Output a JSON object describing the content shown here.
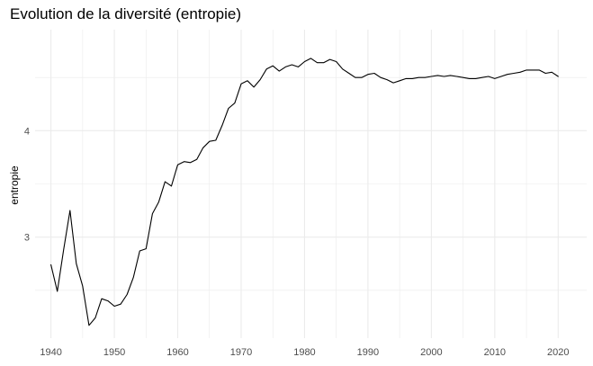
{
  "chart_data": {
    "type": "line",
    "title": "Evolution de la diversité (entropie)",
    "xlabel": "",
    "ylabel": "entropie",
    "xlim": [
      1937.5,
      2024.5
    ],
    "ylim": [
      2.05,
      4.95
    ],
    "x_ticks": [
      1940,
      1950,
      1960,
      1970,
      1980,
      1990,
      2000,
      2010,
      2020
    ],
    "x_minor_ticks": [
      1945,
      1955,
      1965,
      1975,
      1985,
      1995,
      2005,
      2015
    ],
    "y_ticks": [
      3,
      4
    ],
    "y_minor_ticks": [
      2.5,
      3.5,
      4.5
    ],
    "grid": true,
    "legend": "none",
    "colors": {
      "line": "#000000",
      "grid": "#ebebeb",
      "tick_label": "#4d4d4d",
      "background": "#ffffff"
    },
    "series": [
      {
        "x": [
          1940,
          1941,
          1942,
          1943,
          1944,
          1945,
          1946,
          1947,
          1948,
          1949,
          1950,
          1951,
          1952,
          1953,
          1954,
          1955,
          1956,
          1957,
          1958,
          1959,
          1960,
          1961,
          1962,
          1963,
          1964,
          1965,
          1966,
          1967,
          1968,
          1969,
          1970,
          1971,
          1972,
          1973,
          1974,
          1975,
          1976,
          1977,
          1978,
          1979,
          1980,
          1981,
          1982,
          1983,
          1984,
          1985,
          1986,
          1987,
          1988,
          1989,
          1990,
          1991,
          1992,
          1993,
          1994,
          1995,
          1996,
          1997,
          1998,
          1999,
          2000,
          2001,
          2002,
          2003,
          2004,
          2005,
          2006,
          2007,
          2008,
          2009,
          2010,
          2011,
          2012,
          2013,
          2014,
          2015,
          2016,
          2017,
          2018,
          2019,
          2020
        ],
        "values": [
          2.74,
          2.49,
          2.88,
          3.25,
          2.75,
          2.54,
          2.17,
          2.24,
          2.42,
          2.4,
          2.35,
          2.37,
          2.46,
          2.62,
          2.87,
          2.89,
          3.22,
          3.33,
          3.52,
          3.48,
          3.68,
          3.71,
          3.7,
          3.73,
          3.84,
          3.9,
          3.91,
          4.05,
          4.21,
          4.26,
          4.44,
          4.47,
          4.41,
          4.48,
          4.58,
          4.61,
          4.56,
          4.6,
          4.62,
          4.6,
          4.65,
          4.68,
          4.64,
          4.64,
          4.67,
          4.65,
          4.58,
          4.54,
          4.5,
          4.5,
          4.53,
          4.54,
          4.5,
          4.48,
          4.45,
          4.47,
          4.49,
          4.49,
          4.5,
          4.5,
          4.51,
          4.52,
          4.51,
          4.52,
          4.51,
          4.5,
          4.49,
          4.49,
          4.5,
          4.51,
          4.49,
          4.51,
          4.53,
          4.54,
          4.55,
          4.57,
          4.57,
          4.57,
          4.54,
          4.55,
          4.51
        ]
      }
    ]
  }
}
